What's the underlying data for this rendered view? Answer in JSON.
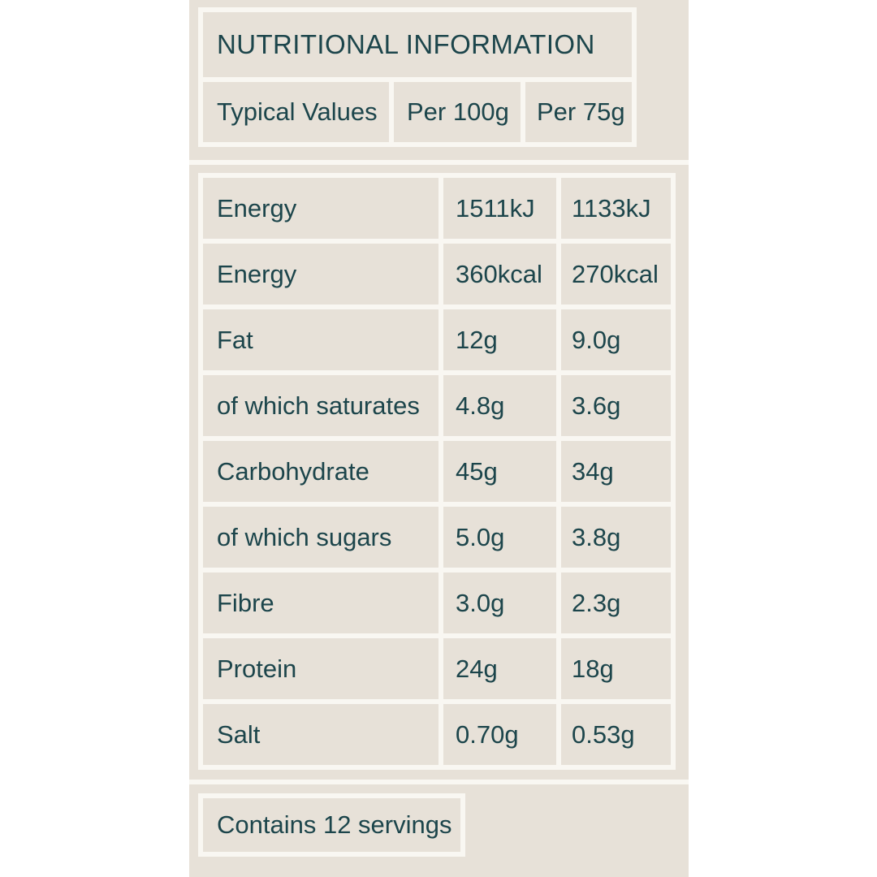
{
  "colors": {
    "page_bg": "#ffffff",
    "panel_bg": "#e7e1d8",
    "divider": "#f9f7f2",
    "text": "#1c454b"
  },
  "header": {
    "title": "NUTRITIONAL INFORMATION",
    "columns": [
      "Typical Values",
      "Per 100g",
      "Per 75g"
    ]
  },
  "nutrition_table": {
    "rows": [
      {
        "label": "Energy",
        "per_100g": "1511kJ",
        "per_75g": "1133kJ"
      },
      {
        "label": "Energy",
        "per_100g": "360kcal",
        "per_75g": "270kcal"
      },
      {
        "label": "Fat",
        "per_100g": "12g",
        "per_75g": "9.0g"
      },
      {
        "label": "of which saturates",
        "per_100g": "4.8g",
        "per_75g": "3.6g"
      },
      {
        "label": "Carbohydrate",
        "per_100g": "45g",
        "per_75g": "34g"
      },
      {
        "label": "of which sugars",
        "per_100g": "5.0g",
        "per_75g": "3.8g"
      },
      {
        "label": "Fibre",
        "per_100g": "3.0g",
        "per_75g": "2.3g"
      },
      {
        "label": "Protein",
        "per_100g": "24g",
        "per_75g": "18g"
      },
      {
        "label": "Salt",
        "per_100g": "0.70g",
        "per_75g": "0.53g"
      }
    ]
  },
  "footer": {
    "servings": "Contains 12 servings"
  }
}
